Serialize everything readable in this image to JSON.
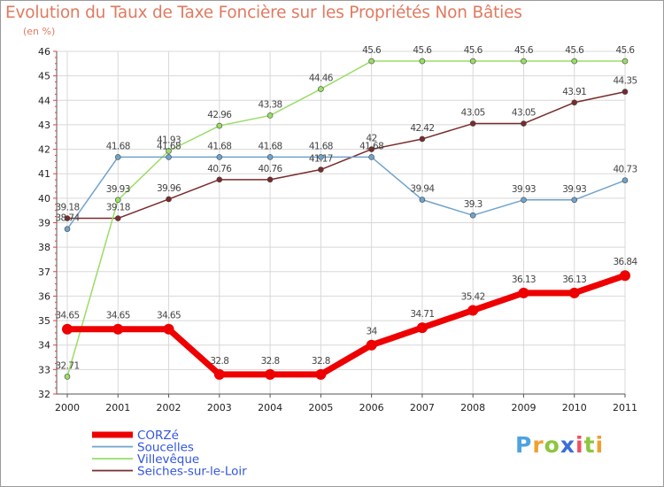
{
  "title": "Evolution du Taux de Taxe Foncière sur les Propriétés Non Bâties",
  "unit_label": "(en %)",
  "brand": {
    "letters": [
      "P",
      "r",
      "o",
      "x",
      "i",
      "t",
      "i"
    ],
    "colors": [
      "#4da3e0",
      "#f0a030",
      "#8cc63f",
      "#3a6fd8",
      "#f05060",
      "#8cc63f",
      "#f0a030"
    ]
  },
  "chart_data": {
    "type": "line",
    "title": "Evolution du Taux de Taxe Foncière sur les Propriétés Non Bâties",
    "ylabel": "(en %)",
    "x": [
      "2000",
      "2001",
      "2002",
      "2003",
      "2004",
      "2005",
      "2006",
      "2007",
      "2008",
      "2009",
      "2010",
      "2011"
    ],
    "ylim": [
      32,
      46
    ],
    "yticks": [
      32,
      33,
      34,
      35,
      36,
      37,
      38,
      39,
      40,
      41,
      42,
      43,
      44,
      45,
      46
    ],
    "grid": true,
    "legend": "bottom-left",
    "series": [
      {
        "name": "CORZé",
        "color": "#ee0000",
        "values": [
          34.65,
          34.65,
          34.65,
          32.8,
          32.8,
          32.8,
          34,
          34.71,
          35.42,
          36.13,
          36.13,
          36.84
        ],
        "labels": [
          "34.65",
          "34.65",
          "34.65",
          "32.8",
          "32.8",
          "32.8",
          "34",
          "34.71",
          "35.42",
          "36.13",
          "36.13",
          "36.84"
        ]
      },
      {
        "name": "Soucelles",
        "color": "#6fa3cc",
        "values": [
          38.74,
          41.68,
          41.68,
          41.68,
          41.68,
          41.68,
          41.68,
          39.94,
          39.3,
          39.93,
          39.93,
          40.73
        ],
        "labels": [
          "38.74",
          "41.68",
          "41.68",
          "41.68",
          "41.68",
          "41.68",
          "41.68",
          "39.94",
          "39.3",
          "39.93",
          "39.93",
          "40.73"
        ]
      },
      {
        "name": "Villevêque",
        "color": "#99dd66",
        "values": [
          32.71,
          39.93,
          41.93,
          42.96,
          43.38,
          44.46,
          45.6,
          45.6,
          45.6,
          45.6,
          45.6,
          45.6
        ],
        "labels": [
          "32.71",
          "39.93",
          "41.93",
          "42.96",
          "43.38",
          "44.46",
          "45.6",
          "45.6",
          "45.6",
          "45.6",
          "45.6",
          "45.6"
        ]
      },
      {
        "name": "Seiches-sur-le-Loir",
        "color": "#7a2a2a",
        "values": [
          39.18,
          39.18,
          39.96,
          40.76,
          40.76,
          41.17,
          42,
          42.42,
          43.05,
          43.05,
          43.91,
          44.35
        ],
        "labels": [
          "39.18",
          "39.18",
          "39.96",
          "40.76",
          "40.76",
          "41.17",
          "42",
          "42.42",
          "43.05",
          "43.05",
          "43.91",
          "44.35"
        ]
      }
    ]
  }
}
